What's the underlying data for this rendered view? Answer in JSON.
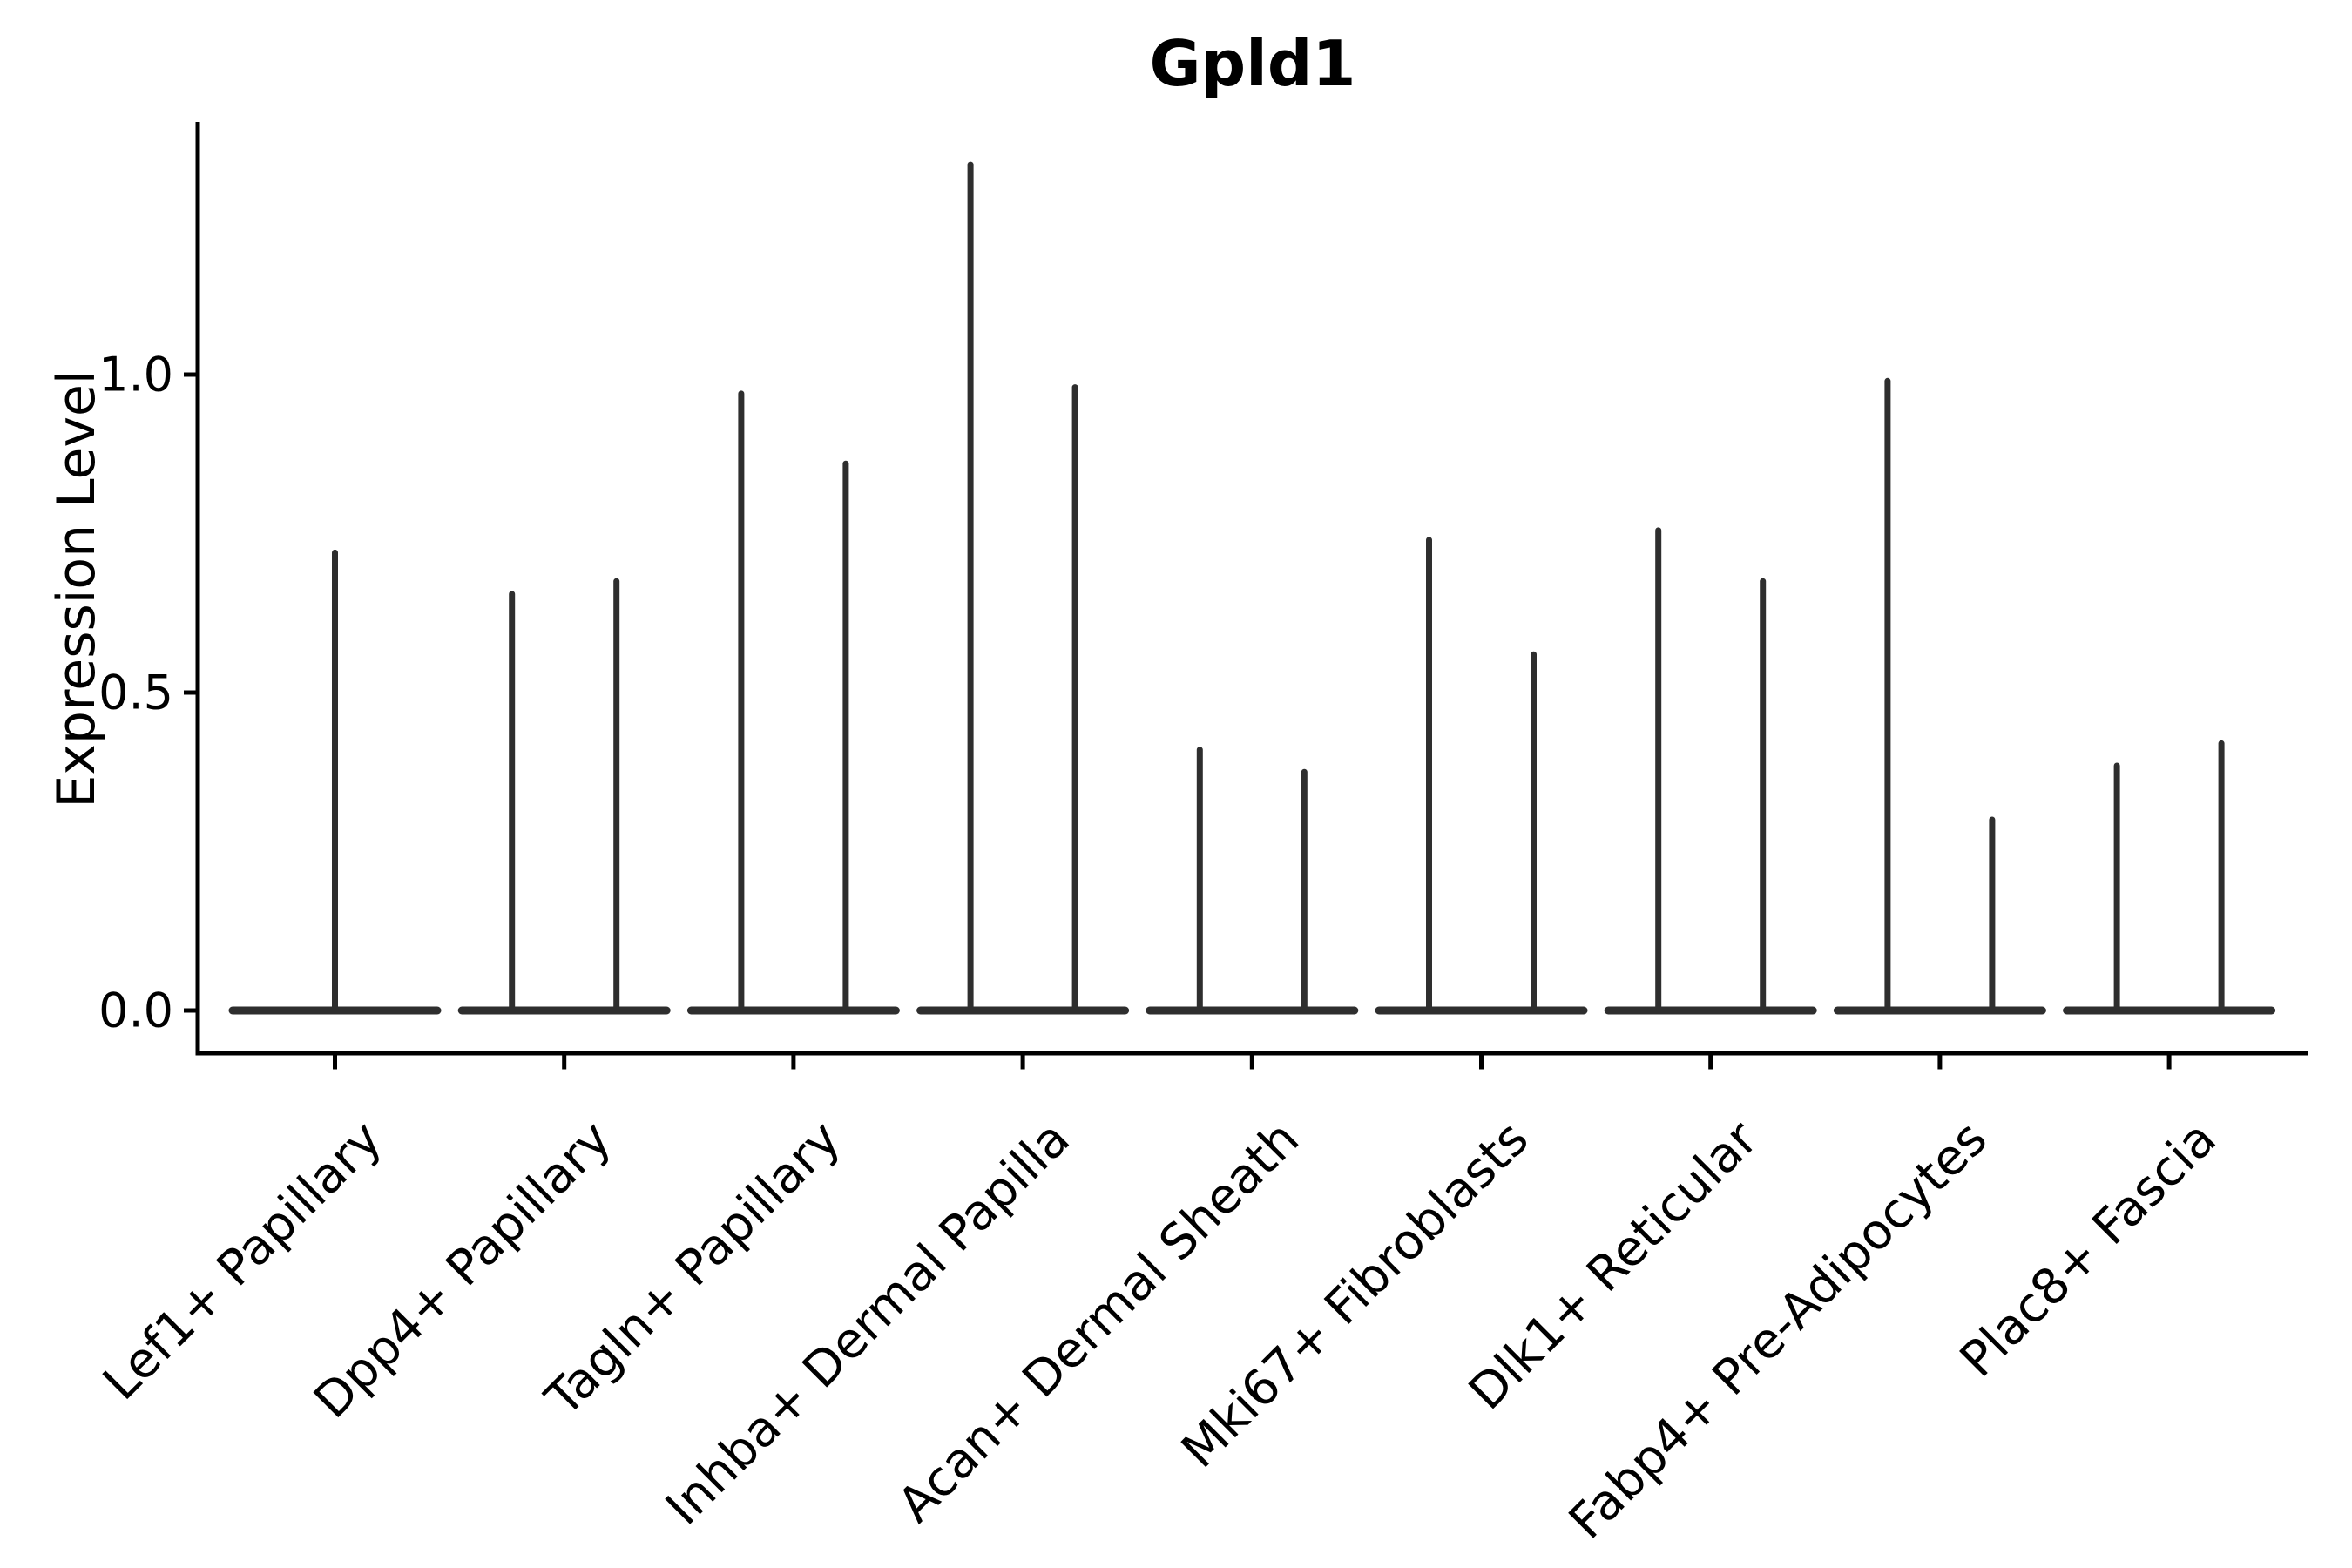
{
  "chart_data": {
    "type": "violin",
    "title": "Gpld1",
    "ylabel": "Expression Level",
    "xlabel": "",
    "yticks": [
      0.0,
      0.5,
      1.0
    ],
    "ytick_labels": [
      "0.0",
      "0.5",
      "1.0"
    ],
    "ylim": [
      -0.07,
      1.4
    ],
    "grid": false,
    "legend": false,
    "categories": [
      "Lef1+ Papillary",
      "Dpp4+ Papillary",
      "Tagln+ Papillary",
      "Inhba+ Dermal Papilla",
      "Acan+ Dermal Sheath",
      "Mki67+ Fibroblasts",
      "Dlk1+ Reticular",
      "Fabp4+ Pre-Adipocytes",
      "Plac8+ Fascia"
    ],
    "violins": [
      {
        "category": "Lef1+ Papillary",
        "max_values": [
          0.72
        ]
      },
      {
        "category": "Dpp4+ Papillary",
        "max_values": [
          0.655,
          0.675
        ]
      },
      {
        "category": "Tagln+ Papillary",
        "max_values": [
          0.97,
          0.86
        ]
      },
      {
        "category": "Inhba+ Dermal Papilla",
        "max_values": [
          1.33,
          0.98
        ]
      },
      {
        "category": "Acan+ Dermal Sheath",
        "max_values": [
          0.41,
          0.375
        ]
      },
      {
        "category": "Mki67+ Fibroblasts",
        "max_values": [
          0.74,
          0.56
        ]
      },
      {
        "category": "Dlk1+ Reticular",
        "max_values": [
          0.755,
          0.675
        ]
      },
      {
        "category": "Fabp4+ Pre-Adipocytes",
        "max_values": [
          0.99,
          0.3
        ]
      },
      {
        "category": "Plac8+ Fascia",
        "max_values": [
          0.385,
          0.42
        ]
      }
    ],
    "violin_style": "spike (all density mass at 0 with thin tail to max)",
    "colors": {
      "violin": "#2e2e2e",
      "axis": "#000000",
      "text": "#000000",
      "background": "#ffffff"
    }
  }
}
